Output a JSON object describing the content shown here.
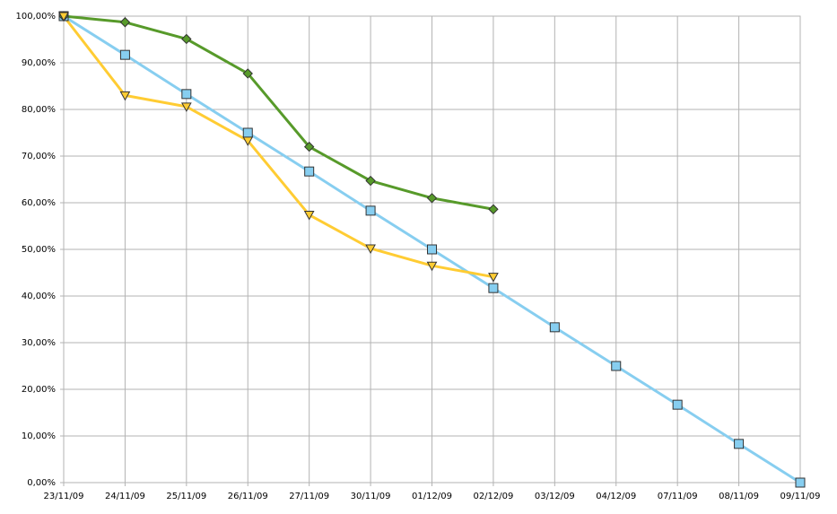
{
  "chart_data": {
    "type": "line",
    "categories": [
      "23/11/09",
      "24/11/09",
      "25/11/09",
      "26/11/09",
      "27/11/09",
      "30/11/09",
      "01/12/09",
      "02/12/09",
      "03/12/09",
      "04/12/09",
      "07/11/09",
      "08/11/09",
      "09/11/09"
    ],
    "series": [
      {
        "color": "#87cef0",
        "marker": "square",
        "values": [
          100,
          91.7,
          83.3,
          75,
          66.7,
          58.3,
          50,
          41.7,
          33.3,
          25,
          16.7,
          8.3,
          0
        ]
      },
      {
        "color": "#579a2a",
        "marker": "diamond",
        "values": [
          100,
          98.7,
          95.1,
          87.7,
          72,
          64.7,
          61,
          58.6,
          null,
          null,
          null,
          null,
          null
        ]
      },
      {
        "color": "#ffcc33",
        "marker": "triangle-down",
        "values": [
          100,
          83,
          80.6,
          73.3,
          57.4,
          50.2,
          46.5,
          44.1,
          null,
          null,
          null,
          null,
          null
        ]
      }
    ],
    "ylim": [
      0,
      100
    ],
    "yticks": [
      {
        "value": 0,
        "label": "0,00%"
      },
      {
        "value": 10,
        "label": "10,00%"
      },
      {
        "value": 20,
        "label": "20,00%"
      },
      {
        "value": 30,
        "label": "30,00%"
      },
      {
        "value": 40,
        "label": "40,00%"
      },
      {
        "value": 50,
        "label": "50,00%"
      },
      {
        "value": 60,
        "label": "60,00%"
      },
      {
        "value": 70,
        "label": "70,00%"
      },
      {
        "value": 80,
        "label": "80,00%"
      },
      {
        "value": 90,
        "label": "90,00%"
      },
      {
        "value": 100,
        "label": "100,00%"
      }
    ],
    "grid": true
  }
}
